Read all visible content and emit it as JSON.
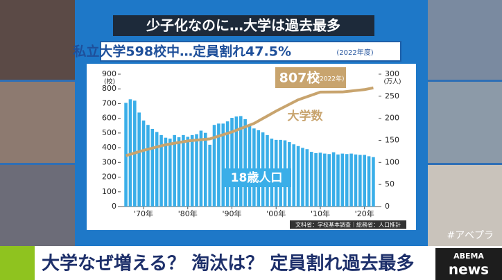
{
  "chart_data": {
    "type": "bar",
    "title": "少子化なのに…大学は過去最多",
    "subtitle": "私立大学598校中…定員割れ47.5%",
    "subtitle_note": "(2022年度)",
    "y_axis_label": "(校)",
    "y2_axis_label": "(万人)",
    "source": "文科省：学校基本調査｜総務省：人口推計",
    "annotations": [
      "807校",
      "(2022年)",
      "大学数"
    ],
    "x": [
      1966,
      1967,
      1968,
      1969,
      1970,
      1971,
      1972,
      1973,
      1974,
      1975,
      1976,
      1977,
      1978,
      1979,
      1980,
      1981,
      1982,
      1983,
      1984,
      1985,
      1986,
      1987,
      1988,
      1989,
      1990,
      1991,
      1992,
      1993,
      1994,
      1995,
      1996,
      1997,
      1998,
      1999,
      2000,
      2001,
      2002,
      2003,
      2004,
      2005,
      2006,
      2007,
      2008,
      2009,
      2010,
      2011,
      2012,
      2013,
      2014,
      2015,
      2016,
      2017,
      2018,
      2019,
      2020,
      2021,
      2022
    ],
    "xlim": [
      1964.5,
      2023.5
    ],
    "xticks": [
      {
        "value": 1970,
        "label": "'70年"
      },
      {
        "value": 1980,
        "label": "'80年"
      },
      {
        "value": 1990,
        "label": "'90年"
      },
      {
        "value": 2000,
        "label": "'00年"
      },
      {
        "value": 2010,
        "label": "'10年"
      },
      {
        "value": 2020,
        "label": "'20年"
      }
    ],
    "ylim": [
      0,
      900
    ],
    "yticks": [
      0,
      100,
      200,
      300,
      400,
      500,
      600,
      700,
      800,
      900
    ],
    "y2lim": [
      0,
      300
    ],
    "y2ticks": [
      0,
      50,
      100,
      150,
      200,
      250,
      300
    ],
    "series": [
      {
        "name": "18歳人口",
        "type": "bar",
        "axis": "y2",
        "color": "#3aaee8",
        "values": [
          235,
          243,
          240,
          213,
          195,
          185,
          176,
          169,
          162,
          156,
          154,
          162,
          157,
          162,
          158,
          162,
          164,
          172,
          167,
          140,
          185,
          188,
          188,
          193,
          201,
          204,
          205,
          198,
          186,
          177,
          173,
          168,
          162,
          154,
          151,
          151,
          150,
          146,
          141,
          137,
          133,
          130,
          124,
          121,
          122,
          120,
          119,
          123,
          118,
          120,
          119,
          120,
          118,
          117,
          117,
          114,
          112
        ]
      },
      {
        "name": "大学数",
        "type": "line",
        "color": "#c8a46e",
        "x": [
          1966,
          1970,
          1975,
          1980,
          1985,
          1990,
          1995,
          2000,
          2005,
          2010,
          2015,
          2020,
          2022
        ],
        "values": [
          346,
          382,
          420,
          446,
          460,
          507,
          565,
          649,
          726,
          778,
          779,
          795,
          807
        ]
      }
    ]
  },
  "caption": "大学なぜ増える？ 淘汰は？ 定員割れ過去最多",
  "logo": [
    "ABEMA",
    "news"
  ],
  "hashtag": "#アベプラ"
}
